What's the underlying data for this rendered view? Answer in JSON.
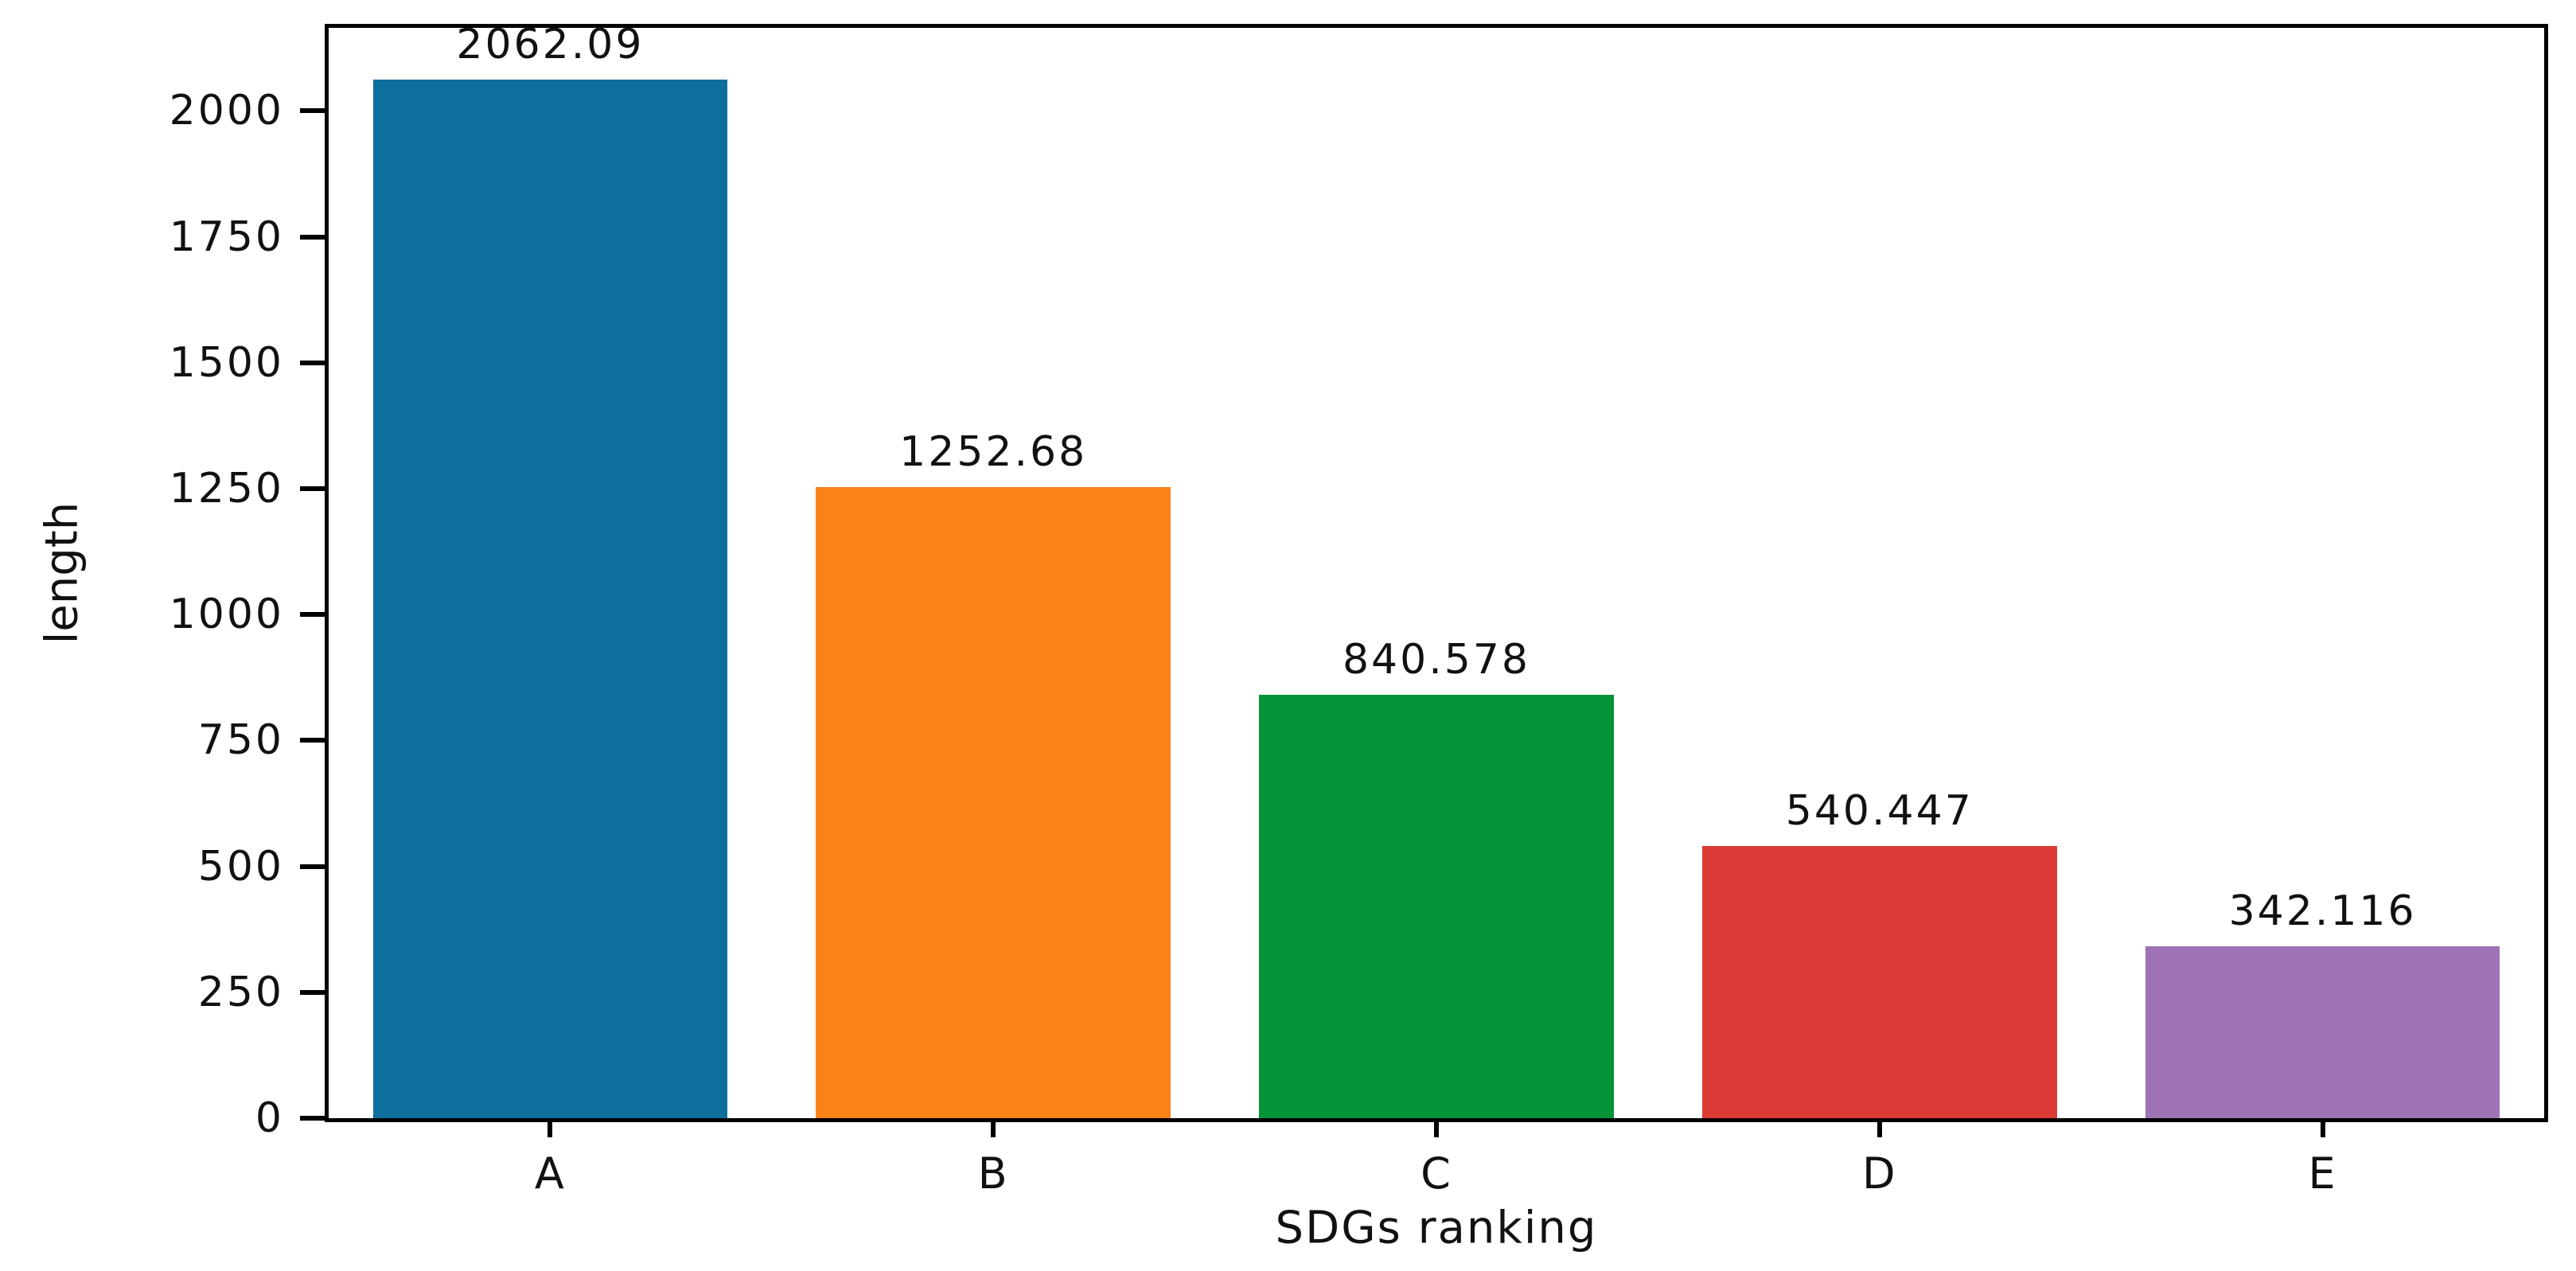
{
  "figure": {
    "background": "#ffffff",
    "axis_color": "#000000",
    "text_color": "#111111"
  },
  "chart_data": {
    "type": "bar",
    "title": "",
    "xlabel": "SDGs ranking",
    "ylabel": "length",
    "categories": [
      "A",
      "B",
      "C",
      "D",
      "E"
    ],
    "values": [
      2062.09,
      1252.68,
      840.578,
      540.447,
      342.116
    ],
    "bar_labels": [
      "2062.09",
      "1252.68",
      "840.578",
      "540.447",
      "342.116"
    ],
    "bar_colors": [
      "#0d6f9e",
      "#fb8119",
      "#049336",
      "#dc3a37",
      "#9d73b6"
    ],
    "yticks": [
      0,
      250,
      500,
      750,
      1000,
      1250,
      1500,
      1750,
      2000
    ],
    "ytick_labels": [
      "0",
      "250",
      "500",
      "750",
      "1000",
      "1250",
      "1500",
      "1750",
      "2000"
    ],
    "ylim": [
      0,
      2165
    ],
    "grid": false,
    "legend_position": null
  }
}
